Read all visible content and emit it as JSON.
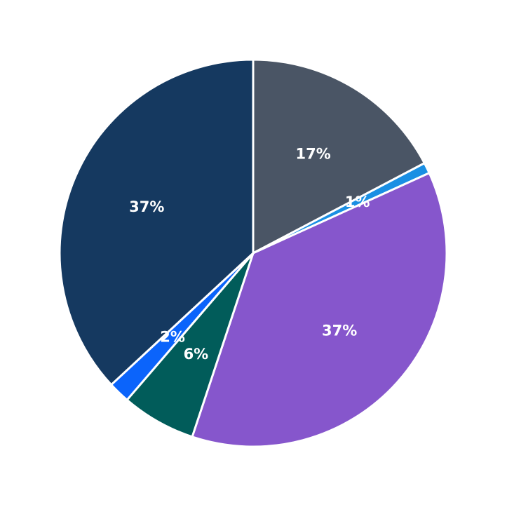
{
  "chart_data": {
    "type": "pie",
    "title": "",
    "start_angle": "90 (12 o'clock), clockwise",
    "slices": [
      {
        "label": "17%",
        "value": 17.3,
        "color": "#4a5565"
      },
      {
        "label": "1%",
        "value": 0.9,
        "color": "#1a8fe3"
      },
      {
        "label": "37%",
        "value": 36.9,
        "color": "#8656cc"
      },
      {
        "label": "6%",
        "value": 6.2,
        "color": "#015c5a"
      },
      {
        "label": "2%",
        "value": 1.8,
        "color": "#0b64fb"
      },
      {
        "label": "37%",
        "value": 36.9,
        "color": "#153960"
      }
    ],
    "legend": "none",
    "edge_color": "#ffffff"
  }
}
